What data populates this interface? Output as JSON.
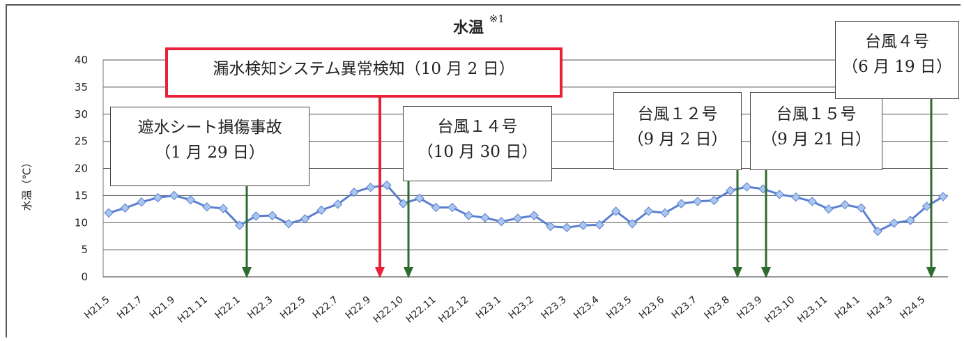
{
  "chart_data": {
    "type": "line",
    "title": "水温",
    "title_note": "※1",
    "ylabel": "水温（℃）",
    "xlabel": "",
    "ylim": [
      0,
      40
    ],
    "yticks": [
      0,
      5,
      10,
      15,
      20,
      25,
      30,
      35,
      40
    ],
    "grid": "horizontal",
    "x_tick_labels": [
      "H21.5",
      "H21.7",
      "H21.9",
      "H21.11",
      "H22.1",
      "H22.3",
      "H22.5",
      "H22.7",
      "H22.9",
      "H22.10",
      "H22.11",
      "H22.12",
      "H23.1",
      "H23.2",
      "H23.3",
      "H23.4",
      "H23.5",
      "H23.6",
      "H23.7",
      "H23.8",
      "H23.9",
      "H23.10",
      "H23.11",
      "H24.1",
      "H24.3",
      "H24.5"
    ],
    "series": [
      {
        "name": "",
        "color": "#5b7fd0",
        "marker": "diamond",
        "values": [
          11.8,
          12.7,
          13.8,
          14.6,
          15.0,
          14.2,
          12.9,
          12.6,
          9.5,
          11.2,
          11.3,
          9.8,
          10.7,
          12.3,
          13.4,
          15.6,
          16.5,
          16.9,
          13.5,
          14.5,
          12.8,
          12.8,
          11.3,
          10.9,
          10.2,
          10.8,
          11.3,
          9.3,
          9.1,
          9.5,
          9.6,
          12.1,
          9.8,
          12.1,
          11.8,
          13.5,
          13.9,
          14.1,
          15.9,
          16.6,
          16.2,
          15.2,
          14.7,
          13.9,
          12.5,
          13.3,
          12.7,
          8.4,
          9.9,
          10.4,
          13.0,
          14.8
        ]
      }
    ],
    "annotations": [
      {
        "lines": [
          "漏水検知システム異常検知（10 月 2 日）"
        ],
        "arrow_color": "#e8203a"
      },
      {
        "lines": [
          "遮水シート損傷事故",
          "（1 月 29 日）"
        ],
        "arrow_color": "#2e6b2e"
      },
      {
        "lines": [
          "台風１４号",
          "（10 月 30 日）"
        ],
        "arrow_color": "#2e6b2e"
      },
      {
        "lines": [
          "台風１２号",
          "（9 月 2 日）"
        ],
        "arrow_color": "#2e6b2e"
      },
      {
        "lines": [
          "台風１５号",
          "（9 月 21 日）"
        ],
        "arrow_color": "#2e6b2e"
      },
      {
        "lines": [
          "台風４号",
          "（6 月 19 日）"
        ],
        "arrow_color": "#2e6b2e"
      }
    ]
  }
}
